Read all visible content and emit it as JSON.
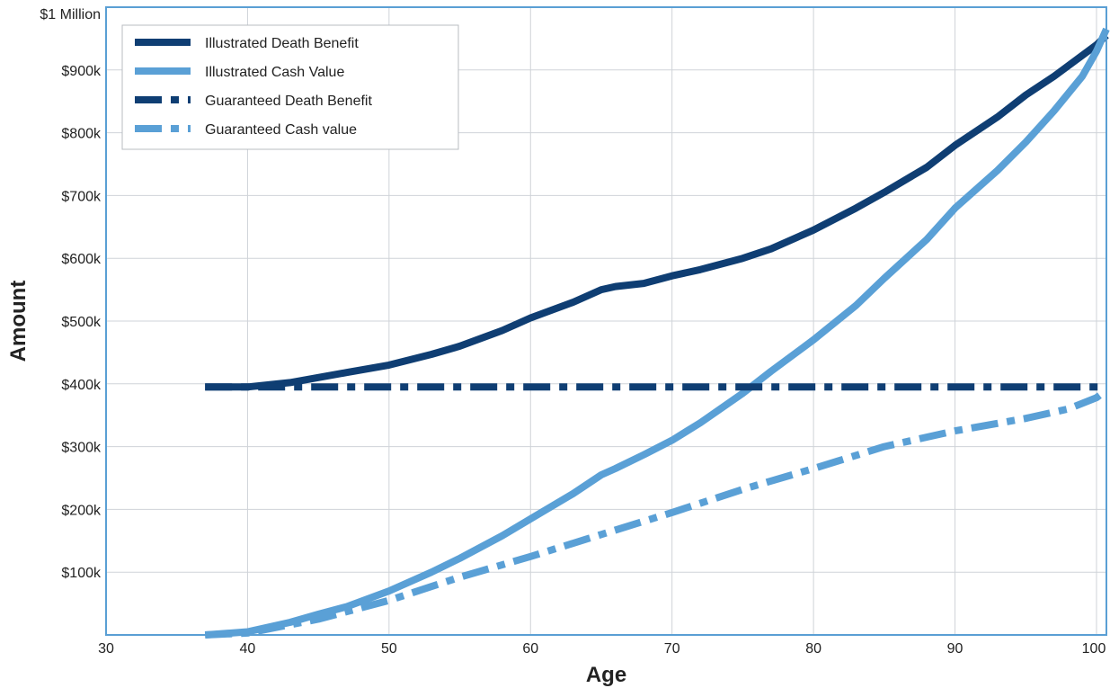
{
  "chart_data": {
    "type": "line",
    "title": "",
    "xlabel": "Age",
    "ylabel": "Amount",
    "xlim": [
      30,
      100.7
    ],
    "ylim": [
      0,
      1000000
    ],
    "x_ticks": [
      30,
      40,
      50,
      60,
      70,
      80,
      90,
      100
    ],
    "y_ticks": [
      {
        "value": 100000,
        "label": "$100k"
      },
      {
        "value": 200000,
        "label": "$200k"
      },
      {
        "value": 300000,
        "label": "$300k"
      },
      {
        "value": 400000,
        "label": "$400k"
      },
      {
        "value": 500000,
        "label": "$500k"
      },
      {
        "value": 600000,
        "label": "$600k"
      },
      {
        "value": 700000,
        "label": "$700k"
      },
      {
        "value": 800000,
        "label": "$800k"
      },
      {
        "value": 900000,
        "label": "$900k"
      },
      {
        "value": 1000000,
        "label": "$1 Million"
      }
    ],
    "grid": true,
    "legend_position": "top-left",
    "colors": {
      "dark": "#0f3e73",
      "light": "#5aa0d6",
      "grid": "#cfd3d8",
      "frame": "#5a9fd4"
    },
    "series": [
      {
        "name": "Illustrated Death Benefit",
        "color": "#0f3e73",
        "style": "solid",
        "x": [
          37,
          40,
          43,
          45,
          47,
          50,
          53,
          55,
          58,
          60,
          63,
          65,
          66,
          68,
          70,
          72,
          75,
          77,
          80,
          83,
          85,
          88,
          90,
          93,
          95,
          97,
          100,
          100.7
        ],
        "y": [
          395000,
          395000,
          402000,
          410000,
          418000,
          430000,
          447000,
          460000,
          485000,
          505000,
          530000,
          550000,
          555000,
          560000,
          572000,
          582000,
          600000,
          615000,
          645000,
          680000,
          705000,
          745000,
          780000,
          825000,
          860000,
          890000,
          940000,
          955000
        ]
      },
      {
        "name": "Illustrated Cash Value",
        "color": "#5aa0d6",
        "style": "solid",
        "x": [
          37,
          40,
          43,
          45,
          47,
          50,
          53,
          55,
          58,
          60,
          63,
          65,
          66,
          68,
          70,
          72,
          75,
          77,
          80,
          83,
          85,
          88,
          90,
          93,
          95,
          97,
          99,
          100,
          100.7
        ],
        "y": [
          0,
          5000,
          20000,
          33000,
          45000,
          70000,
          100000,
          122000,
          158000,
          185000,
          225000,
          255000,
          265000,
          287000,
          310000,
          338000,
          385000,
          420000,
          470000,
          525000,
          568000,
          630000,
          680000,
          740000,
          785000,
          835000,
          890000,
          930000,
          965000
        ]
      },
      {
        "name": "Guaranteed Death Benefit",
        "color": "#0f3e73",
        "style": "dashdot",
        "x": [
          37,
          100.7
        ],
        "y": [
          395000,
          395000
        ]
      },
      {
        "name": "Guaranteed Cash value",
        "color": "#5aa0d6",
        "style": "dashdot",
        "x": [
          37,
          40,
          45,
          50,
          55,
          60,
          65,
          70,
          75,
          80,
          85,
          90,
          95,
          98,
          100,
          100.7
        ],
        "y": [
          0,
          3000,
          25000,
          55000,
          92000,
          125000,
          160000,
          195000,
          232000,
          265000,
          300000,
          325000,
          345000,
          360000,
          378000,
          390000
        ]
      }
    ]
  }
}
